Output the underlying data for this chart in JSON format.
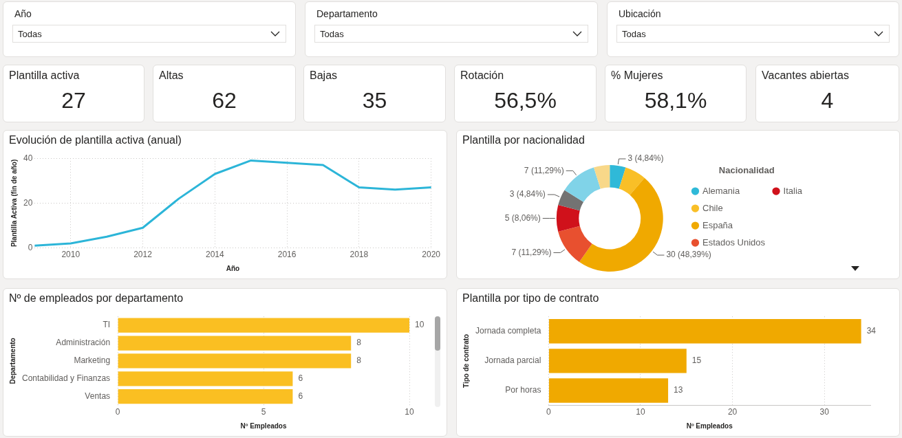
{
  "chart_data": [
    {
      "type": "other",
      "title": "Año",
      "annotations": [
        "Todas"
      ]
    },
    {
      "type": "other",
      "title": "Departamento",
      "annotations": [
        "Todas"
      ]
    },
    {
      "type": "other",
      "title": "Ubicación",
      "annotations": [
        "Todas"
      ]
    },
    {
      "type": "other",
      "title": "Plantilla activa",
      "annotations": [
        "27"
      ]
    },
    {
      "type": "other",
      "title": "Altas",
      "annotations": [
        "62"
      ]
    },
    {
      "type": "other",
      "title": "Bajas",
      "annotations": [
        "35"
      ]
    },
    {
      "type": "other",
      "title": "Rotación",
      "annotations": [
        "56,5%"
      ]
    },
    {
      "type": "other",
      "title": "% Mujeres",
      "annotations": [
        "58,1%"
      ]
    },
    {
      "type": "other",
      "title": "Vacantes abiertas",
      "annotations": [
        "4"
      ]
    },
    {
      "type": "line",
      "title": "Evolución de plantilla activa (anual)",
      "xlabel": "Año",
      "ylabel": "Plantilla Activa (fin de año)",
      "x": [
        2009,
        2010,
        2011,
        2012,
        2013,
        2014,
        2015,
        2016,
        2017,
        2018,
        2019,
        2020
      ],
      "values": [
        1,
        2,
        5,
        9,
        22,
        33,
        39,
        38,
        37,
        27,
        26,
        27
      ],
      "color": "#2cb5d8",
      "xlim": [
        2009,
        2020
      ],
      "xticks": [
        2010,
        2012,
        2014,
        2016,
        2018,
        2020
      ],
      "ylim": [
        0,
        40
      ],
      "yticks": [
        0,
        20,
        40
      ],
      "grid": true
    },
    {
      "type": "donut",
      "title": "Plantilla por nacionalidad",
      "legend_title": "Nacionalidad",
      "legend": "right",
      "categories": [
        "Alemania",
        "Chile",
        "España",
        "Estados Unidos",
        "Italia",
        null,
        null,
        null
      ],
      "values": [
        3,
        4,
        30,
        7,
        5,
        3,
        7,
        3
      ],
      "colors": [
        "#2fb9d8",
        "#f9bf27",
        "#f0a900",
        "#e8502f",
        "#d0111b",
        "#737373",
        "#80d3e8",
        "#f8d889"
      ],
      "value_labels": [
        "3 (4,84%)",
        null,
        "30 (48,39%)",
        "7 (11,29%)",
        "5 (8,06%)",
        "3 (4,84%)",
        "7 (11,29%)",
        null
      ]
    },
    {
      "type": "bar",
      "orientation": "horizontal",
      "title": "Nº de empleados por departamento",
      "xlabel": "Nº Empleados",
      "ylabel": "Departamento",
      "categories": [
        "TI",
        "Administración",
        "Marketing",
        "Contabilidad y Finanzas",
        "Ventas"
      ],
      "values": [
        10,
        8,
        8,
        6,
        6
      ],
      "color": "#fabf22",
      "xlim": [
        0,
        10
      ],
      "xticks": [
        0,
        5,
        10
      ],
      "grid": "x",
      "data_labels": true
    },
    {
      "type": "bar",
      "orientation": "horizontal",
      "title": "Plantilla por tipo de contrato",
      "xlabel": "Nº Empleados",
      "ylabel": "Tipo de contrato",
      "categories": [
        "Jornada completa",
        "Jornada parcial",
        "Por horas"
      ],
      "values": [
        34,
        15,
        13
      ],
      "color": "#f0a900",
      "xlim": [
        0,
        35
      ],
      "xticks": [
        0,
        10,
        20,
        30
      ],
      "grid": "x",
      "data_labels": true
    }
  ]
}
